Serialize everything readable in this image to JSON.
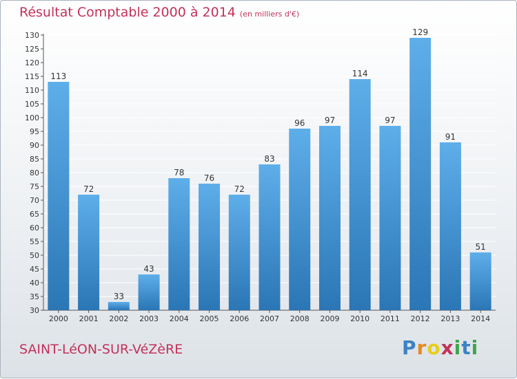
{
  "header": {
    "title": "Résultat Comptable 2000 à 2014",
    "unit": "(en milliers d'€)"
  },
  "footer": {
    "commune": "SAINT-LéON-SUR-VéZèRE",
    "logo_letters": [
      "P",
      "r",
      "o",
      "x",
      "i",
      "t",
      "i"
    ],
    "logo_colors": [
      "#3b83c4",
      "#e58a1e",
      "#e5cf1e",
      "#c2315a",
      "#3fa64a",
      "#3b83c4",
      "#3fa64a"
    ]
  },
  "colors": {
    "title": "#c2315a",
    "bar_top": "#5eaeea",
    "bar_bottom": "#2b76b5",
    "grid": "#ffffff",
    "axis_text": "#333333"
  },
  "chart_data": {
    "type": "bar",
    "title": "Résultat Comptable 2000 à 2014",
    "ylabel": "",
    "xlabel": "",
    "ylim": [
      30,
      130
    ],
    "ytick_step": 5,
    "grid": true,
    "categories": [
      "2000",
      "2001",
      "2002",
      "2003",
      "2004",
      "2005",
      "2006",
      "2007",
      "2008",
      "2009",
      "2010",
      "2011",
      "2012",
      "2013",
      "2014"
    ],
    "values": [
      113,
      72,
      33,
      43,
      78,
      76,
      72,
      83,
      96,
      97,
      114,
      97,
      129,
      91,
      51
    ]
  }
}
